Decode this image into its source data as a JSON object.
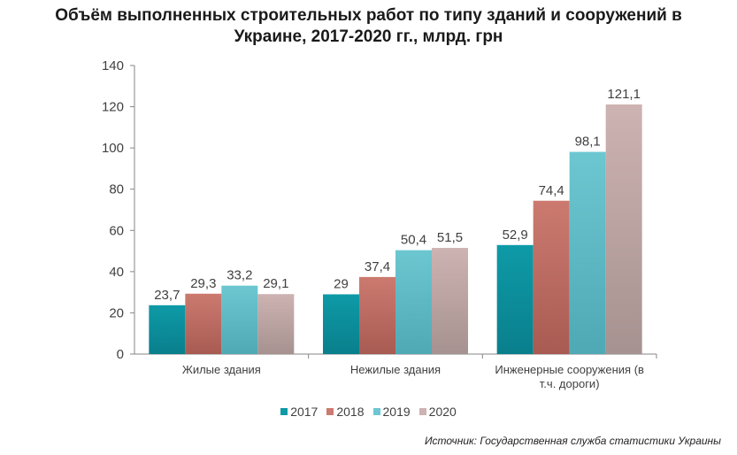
{
  "chart_data": {
    "type": "bar",
    "title_lines": [
      "Объём выполненных строительных работ по типу зданий и сооружений в",
      "Украине, 2017-2020 гг., млрд. грн"
    ],
    "categories": [
      [
        "Жилые здания"
      ],
      [
        "Нежилые здания"
      ],
      [
        "Инженерные сооружения (в",
        "т.ч. дороги)"
      ]
    ],
    "series": [
      {
        "name": "2017",
        "values": [
          23.7,
          29,
          52.9
        ],
        "labels": [
          "23,7",
          "29",
          "52,9"
        ],
        "color": "#0e9aa7",
        "color_dark": "#0a7f8c"
      },
      {
        "name": "2018",
        "values": [
          29.3,
          37.4,
          74.4
        ],
        "labels": [
          "29,3",
          "37,4",
          "74,4"
        ],
        "color": "#cc7a70",
        "color_dark": "#a85b52"
      },
      {
        "name": "2019",
        "values": [
          33.2,
          50.4,
          98.1
        ],
        "labels": [
          "33,2",
          "50,4",
          "98,1"
        ],
        "color": "#6cc7d1",
        "color_dark": "#4fa9b5"
      },
      {
        "name": "2020",
        "values": [
          29.1,
          51.5,
          121.1
        ],
        "labels": [
          "29,1",
          "51,5",
          "121,1"
        ],
        "color": "#cdb3b1",
        "color_dark": "#a69290"
      }
    ],
    "ylim": [
      0,
      140
    ],
    "yticks": [
      0,
      20,
      40,
      60,
      80,
      100,
      120,
      140
    ],
    "grid": false,
    "legend_position": "bottom"
  },
  "source": "Источник: Государственная служба статистики Украины"
}
